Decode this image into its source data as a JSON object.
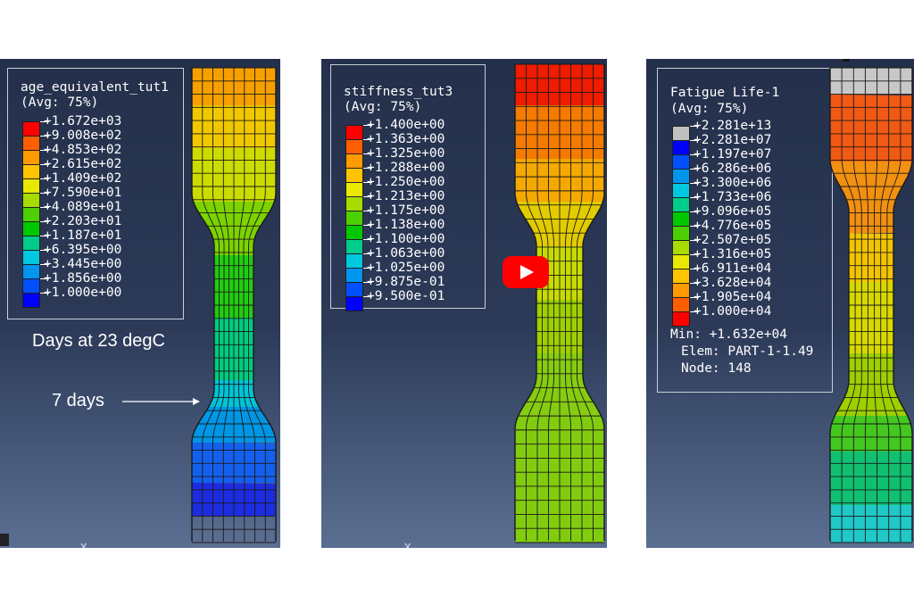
{
  "panels": [
    {
      "legend_title": "age_equivalent_tut1",
      "legend_avg": "(Avg: 75%)",
      "legend_labels": [
        "+1.672e+03",
        "+9.008e+02",
        "+4.853e+02",
        "+2.615e+02",
        "+1.409e+02",
        "+7.590e+01",
        "+4.089e+01",
        "+2.203e+01",
        "+1.187e+01",
        "+6.395e+00",
        "+3.445e+00",
        "+1.856e+00",
        "+1.000e+00"
      ],
      "legend_colors": [
        "#ff0000",
        "#ff5e00",
        "#ff9a00",
        "#ffc400",
        "#e8e800",
        "#a6dc00",
        "#4cd000",
        "#00c800",
        "#00cc8c",
        "#00c8e0",
        "#0096f0",
        "#0050ff",
        "#0000ff"
      ],
      "annotation_days": "Days at 23 degC",
      "annotation_arrow": "7 days",
      "specimen_bands": [
        "#f6a000",
        "#f0c800",
        "#cddc00",
        "#7cd300",
        "#22cc11",
        "#00cc80",
        "#00c4d8",
        "#0096e6",
        "#1460ee",
        "#1c2ce0"
      ],
      "marker": "x"
    },
    {
      "legend_title": "stiffness_tut3",
      "legend_avg": "(Avg: 75%)",
      "legend_labels": [
        "+1.400e+00",
        "+1.363e+00",
        "+1.325e+00",
        "+1.288e+00",
        "+1.250e+00",
        "+1.213e+00",
        "+1.175e+00",
        "+1.138e+00",
        "+1.100e+00",
        "+1.063e+00",
        "+1.025e+00",
        "+9.875e-01",
        "+9.500e-01"
      ],
      "legend_colors": [
        "#ff0000",
        "#ff5e00",
        "#ff9a00",
        "#ffc400",
        "#e8e800",
        "#a6dc00",
        "#4cd000",
        "#00c800",
        "#00cc8c",
        "#00c8e0",
        "#0096f0",
        "#0050ff",
        "#0000ff"
      ],
      "specimen_bands": [
        "#ee1c00",
        "#f47a00",
        "#f4a800",
        "#e2cc00",
        "#c8da00",
        "#9ed000",
        "#86cc10",
        "#82cc10"
      ],
      "marker": "x"
    },
    {
      "legend_title": "Fatigue Life-1",
      "legend_avg": "(Avg: 75%)",
      "legend_labels": [
        "+2.281e+13",
        "+2.281e+07",
        "+1.197e+07",
        "+6.286e+06",
        "+3.300e+06",
        "+1.733e+06",
        "+9.096e+05",
        "+4.776e+05",
        "+2.507e+05",
        "+1.316e+05",
        "+6.911e+04",
        "+3.628e+04",
        "+1.905e+04",
        "+1.000e+04"
      ],
      "legend_colors": [
        "#c0c0c0",
        "#0000ff",
        "#0050ff",
        "#0096f0",
        "#00c8e0",
        "#00cc8c",
        "#00c800",
        "#4cd000",
        "#a6dc00",
        "#e8e800",
        "#ffc400",
        "#ff9a00",
        "#ff5e00",
        "#ff0000"
      ],
      "info_min": "Min: +1.632e+04",
      "info_elem": "Elem: PART-1-1.49",
      "info_node": "Node: 148",
      "specimen_bands": [
        "#c8c8c8",
        "#f05a14",
        "#f29010",
        "#f2c400",
        "#d8d800",
        "#9ecf00",
        "#44c820",
        "#10c070",
        "#20c8c8",
        "#b8bcc0"
      ]
    }
  ]
}
